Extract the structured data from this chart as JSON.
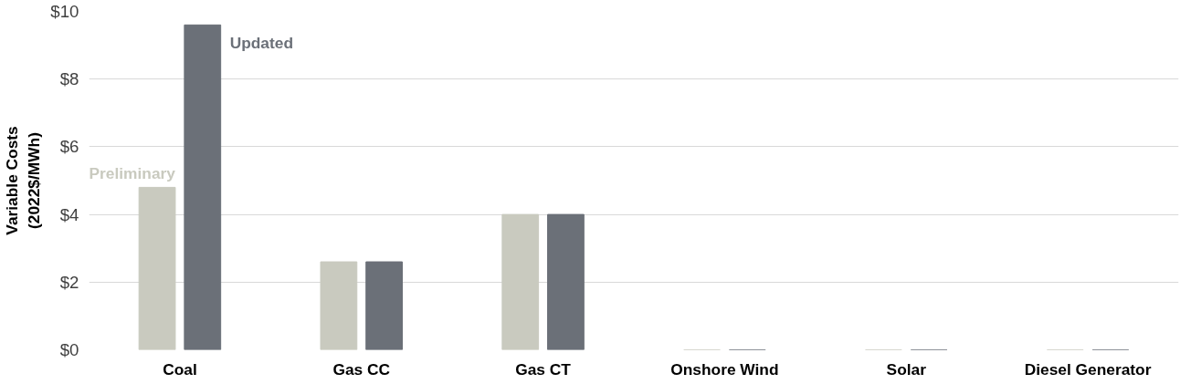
{
  "chart_data": {
    "type": "bar",
    "ylabel": "Variable Costs\n(2022$/MWh)",
    "categories": [
      "Coal",
      "Gas CC",
      "Gas CT",
      "Onshore Wind",
      "Solar",
      "Diesel Generator"
    ],
    "series": [
      {
        "name": "Preliminary",
        "color": "#c9cabf",
        "values": [
          4.8,
          2.6,
          4.0,
          0,
          0,
          0
        ]
      },
      {
        "name": "Updated",
        "color": "#6b7078",
        "values": [
          9.6,
          2.6,
          4.0,
          0,
          0,
          0
        ]
      }
    ],
    "ylim": [
      0,
      10
    ],
    "yticks": [
      {
        "value": 0,
        "label": "$0"
      },
      {
        "value": 2,
        "label": "$2"
      },
      {
        "value": 4,
        "label": "$4"
      },
      {
        "value": 6,
        "label": "$6"
      },
      {
        "value": 8,
        "label": "$8"
      },
      {
        "value": 10,
        "label": "$10"
      }
    ],
    "grid": "y"
  }
}
